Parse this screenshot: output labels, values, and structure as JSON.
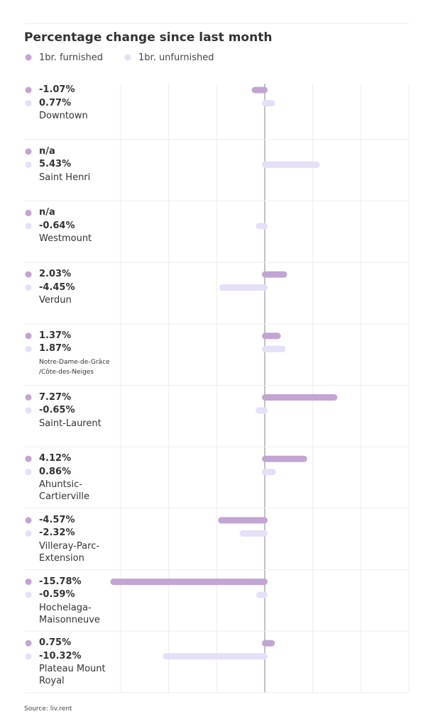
{
  "chart_data": {
    "type": "bar",
    "title": "Percentage change since last month",
    "categories": [
      "Downtown",
      "Saint Henri",
      "Westmount",
      "Verdun",
      "Notre-Dame-de-Grâce /Côte-des-Neiges",
      "Saint-Laurent",
      "Ahuntsic-Cartierville",
      "Villeray-Parc-Extension",
      "Hochelaga-Maisonneuve",
      "Plateau Mount Royal"
    ],
    "series": [
      {
        "name": "1br. furnished",
        "color": "#c2a5d3",
        "values": [
          -1.07,
          null,
          null,
          2.03,
          1.37,
          7.27,
          4.12,
          -4.57,
          -15.78,
          0.75
        ],
        "value_labels": [
          "-1.07%",
          "n/a",
          "n/a",
          "2.03%",
          "1.37%",
          "7.27%",
          "4.12%",
          "-4.57%",
          "-15.78%",
          "0.75%"
        ]
      },
      {
        "name": "1br. unfurnished",
        "color": "#e5dff8",
        "values": [
          0.77,
          5.43,
          -0.64,
          -4.45,
          1.87,
          -0.65,
          0.86,
          -2.32,
          -0.59,
          -10.32
        ],
        "value_labels": [
          "0.77%",
          "5.43%",
          "-0.64%",
          "-4.45%",
          "1.87%",
          "-0.65%",
          "0.86%",
          "-2.32%",
          "-0.59%",
          "-10.32%"
        ]
      }
    ],
    "xlim": [
      -15,
      15
    ],
    "xticks": [
      -15,
      -10,
      -5,
      0,
      5,
      10,
      15
    ],
    "grid": true,
    "source": "Source: liv.rent"
  }
}
